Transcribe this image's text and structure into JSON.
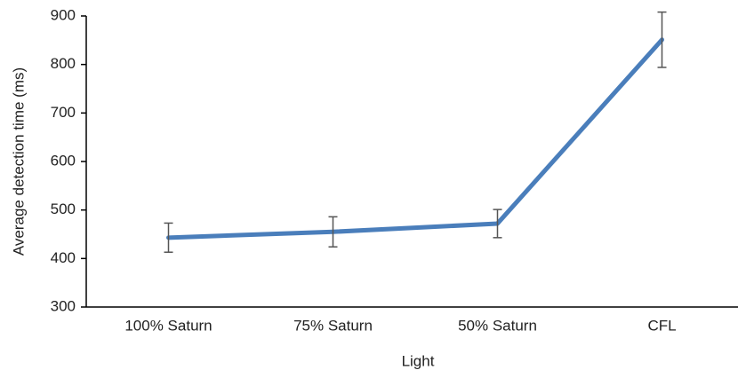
{
  "chart_data": {
    "type": "line",
    "categories": [
      "100% Saturn",
      "75% Saturn",
      "50% Saturn",
      "CFL"
    ],
    "values": [
      443,
      455,
      472,
      851
    ],
    "errors": [
      30,
      31,
      29,
      57
    ],
    "color": "#4a7ebb",
    "error_color": "#555555",
    "ylim": [
      300,
      900
    ],
    "yticks": [
      300,
      400,
      500,
      600,
      700,
      800,
      900
    ],
    "grid": false,
    "x_label": "Light",
    "y_label": "Average  detection time (ms)"
  }
}
